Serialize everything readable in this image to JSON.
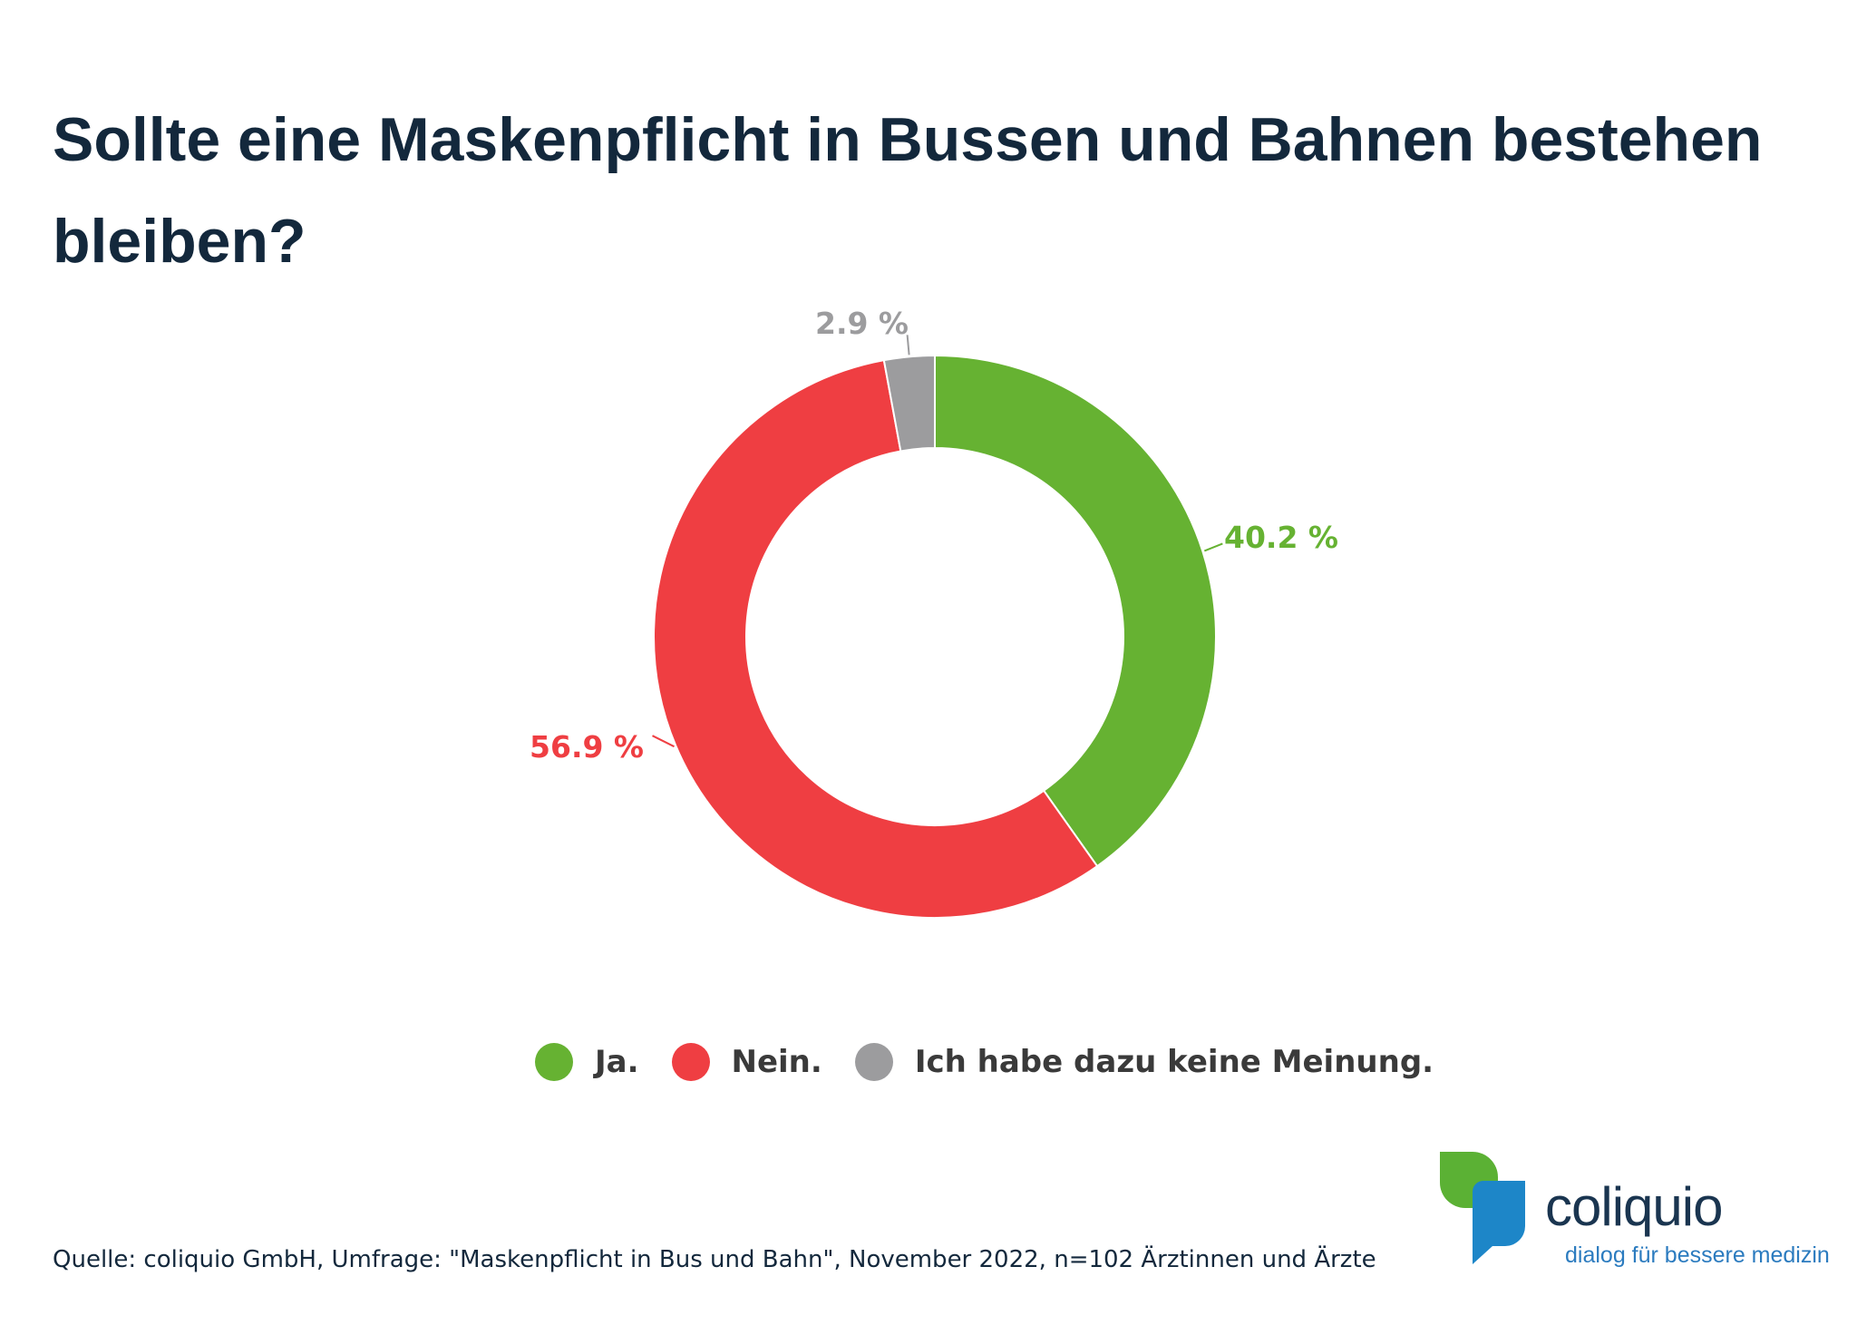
{
  "chart_data": {
    "type": "pie",
    "title": "Sollte eine Maskenpflicht in Bussen und Bahnen bestehen bleiben?",
    "categories": [
      "Ja.",
      "Nein.",
      "Ich habe dazu keine Meinung."
    ],
    "values": [
      40.2,
      56.9,
      2.9
    ],
    "data_labels": [
      "40.2 %",
      "56.9 %",
      "2.9 %"
    ],
    "colors": [
      "#66b232",
      "#ef3e42",
      "#9c9c9e"
    ],
    "legend": "bottom",
    "donut": true
  },
  "source": "Quelle: coliquio GmbH, Umfrage: \"Maskenpflicht in Bus und Bahn\", November 2022, n=102 Ärztinnen und Ärzte",
  "brand": {
    "name": "coliquio",
    "tagline": "dialog für bessere medizin",
    "colors": {
      "green": "#5bb134",
      "blue": "#1d86c8",
      "dark": "#1a3550"
    }
  }
}
